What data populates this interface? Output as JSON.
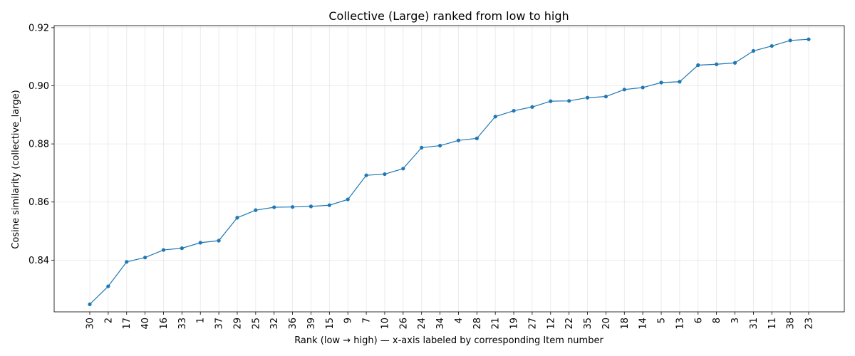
{
  "chart_data": {
    "type": "line",
    "title": "Collective (Large) ranked from low to high",
    "xlabel": "Rank (low → high) — x-axis labeled by corresponding Item number",
    "ylabel": "Cosine similarity (collective_large)",
    "categories": [
      "30",
      "2",
      "17",
      "40",
      "16",
      "33",
      "1",
      "37",
      "29",
      "25",
      "32",
      "36",
      "39",
      "15",
      "9",
      "7",
      "10",
      "26",
      "24",
      "34",
      "4",
      "28",
      "21",
      "19",
      "27",
      "12",
      "22",
      "35",
      "20",
      "18",
      "14",
      "5",
      "13",
      "6",
      "8",
      "3",
      "31",
      "11",
      "38",
      "23"
    ],
    "values": [
      0.8248,
      0.831,
      0.8394,
      0.8409,
      0.8435,
      0.8441,
      0.846,
      0.8467,
      0.8546,
      0.8572,
      0.8582,
      0.8583,
      0.8585,
      0.8589,
      0.8609,
      0.8692,
      0.8696,
      0.8715,
      0.8787,
      0.8794,
      0.8812,
      0.8819,
      0.8894,
      0.8914,
      0.8927,
      0.8947,
      0.8948,
      0.8959,
      0.8963,
      0.8987,
      0.8994,
      0.9011,
      0.9014,
      0.9071,
      0.9074,
      0.9079,
      0.912,
      0.9137,
      0.9156,
      0.916
    ],
    "yticks": [
      0.84,
      0.86,
      0.88,
      0.9,
      0.92
    ],
    "ytick_labels": [
      "0.84",
      "0.86",
      "0.88",
      "0.90",
      "0.92"
    ],
    "ylim": [
      0.8222,
      0.9207
    ],
    "grid": true,
    "color": "#1f77b4"
  }
}
